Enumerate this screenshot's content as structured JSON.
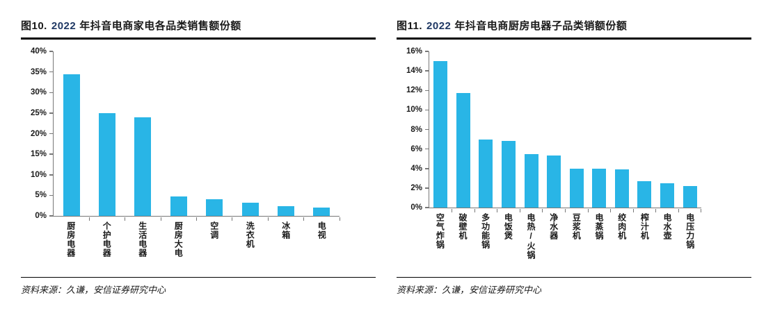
{
  "colors": {
    "bar": "#29B5E6",
    "axis": "#777777",
    "title_year": "#1F3864",
    "text": "#1a1a1a"
  },
  "chart_data": [
    {
      "type": "bar",
      "title": "图10. 2022 年抖音电商家电各品类销售额份额",
      "title_prefix": "图10.",
      "title_year": "2022",
      "title_rest": "年抖音电商家电各品类销售额份额",
      "categories": [
        "厨房电器",
        "个护电器",
        "生活电器",
        "厨房大电",
        "空调",
        "洗衣机",
        "冰箱",
        "电视"
      ],
      "values": [
        34.5,
        24.9,
        23.9,
        4.7,
        4.1,
        3.2,
        2.4,
        2.1
      ],
      "unit": "%",
      "xlabel": "",
      "ylabel": "",
      "ylim": [
        0,
        40
      ],
      "yticks": [
        0,
        5,
        10,
        15,
        20,
        25,
        30,
        35,
        40
      ],
      "ytick_suffix": "%",
      "grid": "off",
      "legend": "none",
      "source": "资料来源：久谦，安信证券研究中心"
    },
    {
      "type": "bar",
      "title": "图11. 2022 年抖音电商厨房电器子品类销额份额",
      "title_prefix": "图11.",
      "title_year": "2022",
      "title_rest": "年抖音电商厨房电器子品类销额份额",
      "categories": [
        "空气炸锅",
        "破壁机",
        "多功能锅",
        "电饭煲",
        "电热/火锅",
        "净水器",
        "豆浆机",
        "电蒸锅",
        "绞肉机",
        "榨汁机",
        "电水壶",
        "电压力锅"
      ],
      "values": [
        15.0,
        11.7,
        7.0,
        6.8,
        5.5,
        5.3,
        4.0,
        4.0,
        3.9,
        2.7,
        2.5,
        2.2
      ],
      "unit": "%",
      "xlabel": "",
      "ylabel": "",
      "ylim": [
        0,
        16
      ],
      "yticks": [
        0,
        2,
        4,
        6,
        8,
        10,
        12,
        14,
        16
      ],
      "ytick_suffix": "%",
      "grid": "off",
      "legend": "none",
      "source": "资料来源：久谦，安信证券研究中心"
    }
  ]
}
